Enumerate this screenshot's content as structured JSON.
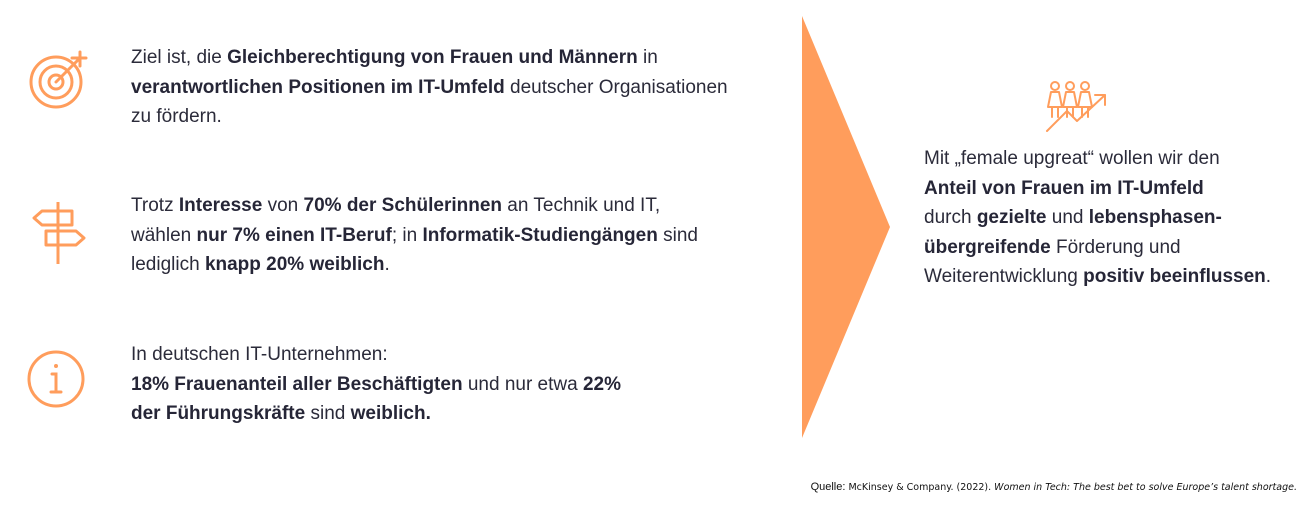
{
  "colors": {
    "accent": "#ff9d5c",
    "text": "#2b2b3a"
  },
  "block1": {
    "icon": "target-icon",
    "parts": [
      {
        "t": "Ziel ist, die ",
        "b": false
      },
      {
        "t": "Gleichberechtigung von Frauen und Männern",
        "b": true
      },
      {
        "t": " in",
        "b": false
      },
      {
        "br": true
      },
      {
        "t": "verantwortlichen Positionen im IT-Umfeld",
        "b": true
      },
      {
        "t": " deutscher Organisationen",
        "b": false
      },
      {
        "br": true
      },
      {
        "t": "zu fördern.",
        "b": false
      }
    ]
  },
  "block2": {
    "icon": "signpost-icon",
    "parts": [
      {
        "t": "Trotz ",
        "b": false
      },
      {
        "t": "Interesse",
        "b": true
      },
      {
        "t": " von ",
        "b": false
      },
      {
        "t": "70% der Schülerinnen",
        "b": true
      },
      {
        "t": " an Technik und IT,",
        "b": false
      },
      {
        "br": true
      },
      {
        "t": "wählen ",
        "b": false
      },
      {
        "t": "nur 7% einen IT-Beruf",
        "b": true
      },
      {
        "t": "; in ",
        "b": false
      },
      {
        "t": "Informatik-Studiengängen",
        "b": true
      },
      {
        "t": "  sind",
        "b": false
      },
      {
        "br": true
      },
      {
        "t": "lediglich ",
        "b": false
      },
      {
        "t": "knapp 20% weiblich",
        "b": true
      },
      {
        "t": ".",
        "b": false
      }
    ]
  },
  "block3": {
    "icon": "info-icon",
    "parts": [
      {
        "t": "In deutschen IT-Unternehmen:",
        "b": false
      },
      {
        "br": true
      },
      {
        "t": "18% Frauenanteil aller Beschäftigten",
        "b": true
      },
      {
        "t": " und nur etwa ",
        "b": false
      },
      {
        "t": "22%",
        "b": true
      },
      {
        "br": true
      },
      {
        "t": "der Führungskräfte",
        "b": true
      },
      {
        "t": " sind ",
        "b": false
      },
      {
        "t": "weiblich.",
        "b": true
      }
    ]
  },
  "right": {
    "icon": "women-growth-icon",
    "parts": [
      {
        "t": "Mit „female upgreat“ wollen wir den",
        "b": false
      },
      {
        "br": true
      },
      {
        "t": "Anteil von Frauen im IT-Umfeld",
        "b": true
      },
      {
        "br": true
      },
      {
        "t": "durch ",
        "b": false
      },
      {
        "t": "gezielte",
        "b": true
      },
      {
        "t": " und ",
        "b": false
      },
      {
        "t": "lebensphasen-",
        "b": true
      },
      {
        "br": true
      },
      {
        "t": "übergreifende",
        "b": true
      },
      {
        "t": " Förderung und",
        "b": false
      },
      {
        "br": true
      },
      {
        "t": "Weiterentwicklung ",
        "b": false
      },
      {
        "t": "positiv beeinflussen",
        "b": true
      },
      {
        "t": ".",
        "b": false
      }
    ]
  },
  "source": {
    "label": "Quelle: ",
    "text": "McKinsey & Company. (2022). ",
    "italic": "Women in Tech: The best bet to solve Europe’s talent shortage."
  }
}
